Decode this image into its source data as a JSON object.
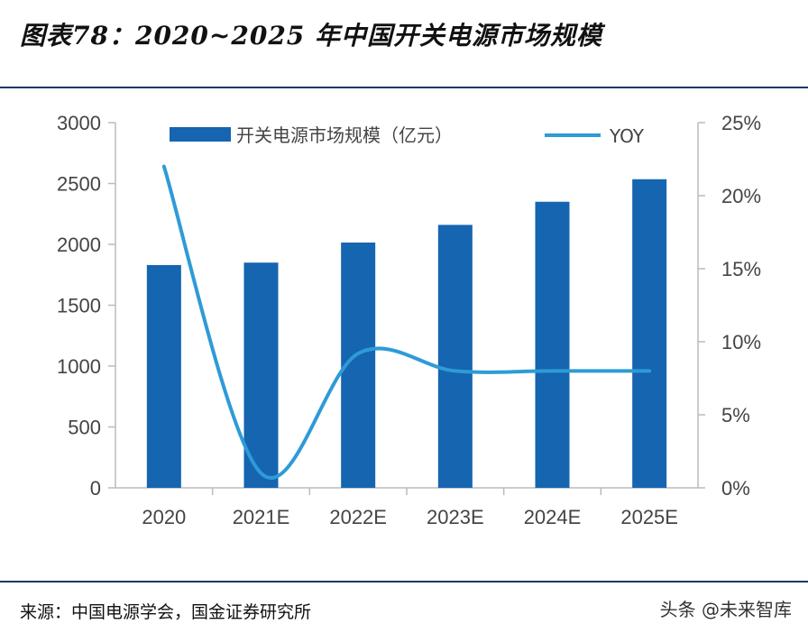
{
  "title": "图表78：2020~2025 年中国开关电源市场规模",
  "source": "来源：中国电源学会，国金证券研究所",
  "watermark": "头条 @未来智库",
  "colors": {
    "bar": "#1565b0",
    "line": "#2e9bd6",
    "rule": "#1f3864"
  },
  "chart_data": {
    "type": "bar",
    "title": "2020~2025 年中国开关电源市场规模",
    "categories": [
      "2020",
      "2021E",
      "2022E",
      "2023E",
      "2024E",
      "2025E"
    ],
    "series": [
      {
        "name": "开关电源市场规模（亿元）",
        "type": "bar",
        "axis": "left",
        "values": [
          1830,
          1850,
          2015,
          2160,
          2350,
          2535
        ]
      },
      {
        "name": "YOY",
        "type": "line",
        "axis": "right",
        "values": [
          0.22,
          0.01,
          0.092,
          0.08,
          0.08,
          0.08
        ]
      }
    ],
    "yleft": {
      "ylim": [
        0,
        3000
      ],
      "ticks": [
        "0",
        "500",
        "1000",
        "1500",
        "2000",
        "2500",
        "3000"
      ]
    },
    "yright": {
      "ylim": [
        0,
        0.25
      ],
      "ticks": [
        "0%",
        "5%",
        "10%",
        "15%",
        "20%",
        "25%"
      ]
    },
    "legend": {
      "bar_label": "开关电源市场规模（亿元）",
      "line_label": "YOY",
      "position": "top"
    }
  }
}
